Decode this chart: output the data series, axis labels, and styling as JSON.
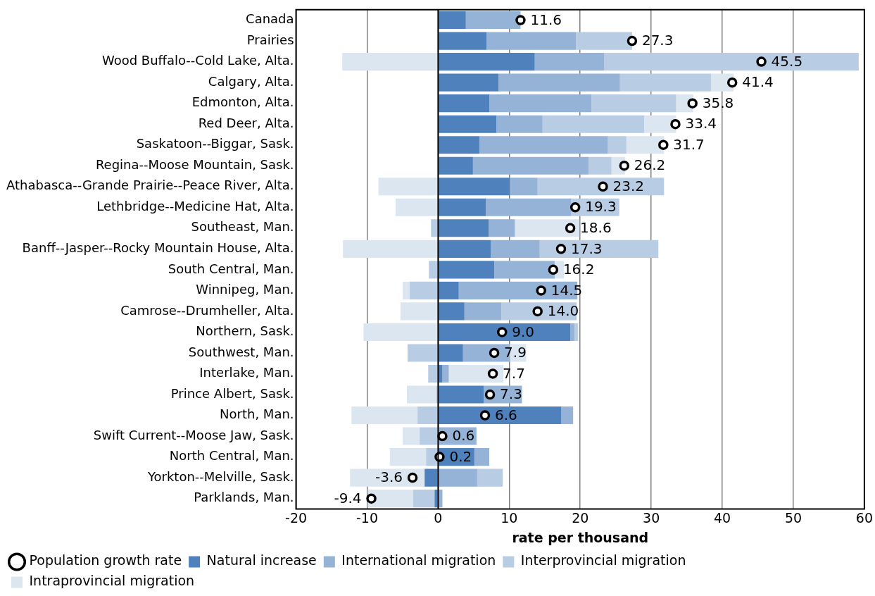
{
  "chart_data": {
    "type": "bar",
    "orientation": "horizontal",
    "stacked": true,
    "xlabel": "rate per thousand",
    "categories": [
      "Canada",
      "Prairies",
      "Wood Buffalo--Cold Lake, Alta.",
      "Calgary, Alta.",
      "Edmonton, Alta.",
      "Red Deer, Alta.",
      "Saskatoon--Biggar, Sask.",
      "Regina--Moose Mountain, Sask.",
      "Athabasca--Grande Prairie--Peace River, Alta.",
      "Lethbridge--Medicine Hat, Alta.",
      "Southeast, Man.",
      "Banff--Jasper--Rocky Mountain House, Alta.",
      "South Central, Man.",
      "Winnipeg, Man.",
      "Camrose--Drumheller, Alta.",
      "Northern, Sask.",
      "Southwest, Man.",
      "Interlake, Man.",
      "Prince Albert, Sask.",
      "North, Man.",
      "Swift Current--Moose Jaw, Sask.",
      "North Central, Man.",
      "Yorkton--Melville, Sask.",
      "Parklands, Man."
    ],
    "series": [
      {
        "name": "Natural increase",
        "color": "#4f81bd",
        "values": [
          3.9,
          6.8,
          13.6,
          8.5,
          7.2,
          8.2,
          5.8,
          4.9,
          10.1,
          6.7,
          7.1,
          7.4,
          7.9,
          2.9,
          3.7,
          18.6,
          3.5,
          0.6,
          6.4,
          17.3,
          null,
          5.1,
          -1.9,
          -0.5
        ]
      },
      {
        "name": "International migration",
        "color": "#95b3d7",
        "values": [
          7.7,
          12.6,
          9.8,
          17.1,
          14.4,
          6.5,
          18.1,
          16.3,
          3.9,
          12.0,
          3.7,
          6.9,
          8.5,
          16.7,
          5.2,
          0.6,
          6.6,
          0.9,
          5.4,
          1.7,
          5.4,
          2.1,
          5.5,
          0.6
        ]
      },
      {
        "name": "Interprovincial migration",
        "color": "#b8cce4",
        "values": [
          null,
          7.9,
          35.8,
          12.8,
          11.9,
          14.3,
          2.6,
          3.2,
          17.8,
          6.8,
          -1.0,
          16.7,
          -1.3,
          -4.0,
          10.6,
          0.5,
          -4.3,
          -1.4,
          -0.3,
          -2.9,
          -2.6,
          -1.7,
          3.6,
          -3.0
        ]
      },
      {
        "name": "Intraprovincial migration",
        "color": "#dce6f1",
        "values": [
          null,
          null,
          -13.5,
          3.2,
          2.4,
          4.5,
          5.3,
          1.9,
          -8.4,
          -6.0,
          9.1,
          -13.4,
          1.3,
          -1.0,
          -5.3,
          -10.5,
          2.3,
          7.7,
          -4.1,
          -9.3,
          -2.4,
          -5.1,
          -10.5,
          -6.4
        ]
      },
      {
        "name": "Population growth rate",
        "type": "scatter",
        "color": "#000000",
        "marker": "circle",
        "values": [
          11.6,
          27.3,
          45.5,
          41.4,
          35.8,
          33.4,
          31.7,
          26.2,
          23.2,
          19.3,
          18.6,
          17.3,
          16.2,
          14.5,
          14.0,
          9.0,
          7.9,
          7.7,
          7.3,
          6.6,
          0.6,
          0.2,
          -3.6,
          -9.4
        ],
        "value_labels": [
          "11.6",
          "27.3",
          "45.5",
          "41.4",
          "35.8",
          "33.4",
          "31.7",
          "26.2",
          "23.2",
          "19.3",
          "18.6",
          "17.3",
          "16.2",
          "14.5",
          "14.0",
          "9.0",
          "7.9",
          "7.7",
          "7.3",
          "6.6",
          "0.6",
          "0.2",
          "-3.6",
          "-9.4"
        ]
      }
    ],
    "xlim": [
      -20,
      60
    ],
    "xticks": [
      -20,
      -10,
      0,
      10,
      20,
      30,
      40,
      50,
      60
    ],
    "grid": "x",
    "legend": "bottom"
  }
}
